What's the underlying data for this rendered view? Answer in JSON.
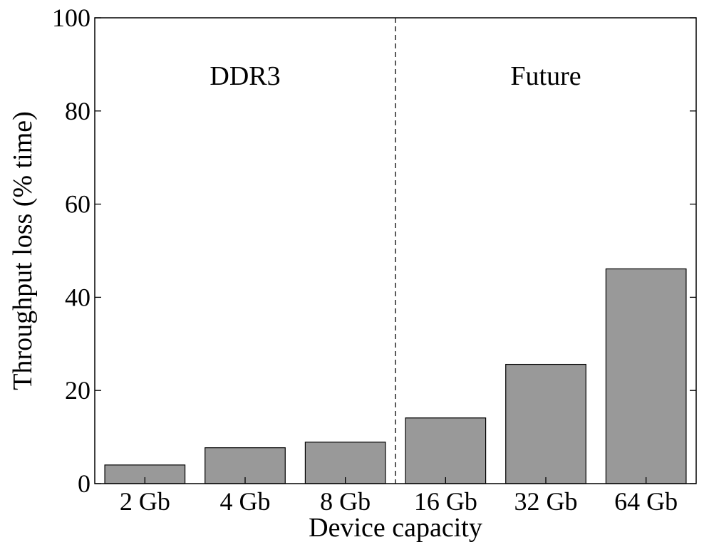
{
  "chart_data": {
    "type": "bar",
    "categories": [
      "2 Gb",
      "4 Gb",
      "8 Gb",
      "16 Gb",
      "32 Gb",
      "64 Gb"
    ],
    "values": [
      4.0,
      7.7,
      8.9,
      14.1,
      25.6,
      46.1
    ],
    "xlabel": "Device capacity",
    "ylabel": "Throughput loss (% time)",
    "ylim": [
      0,
      100
    ],
    "yticks": [
      0,
      20,
      40,
      60,
      80,
      100
    ],
    "grid": false,
    "legend": "none",
    "bar_color": "#999999",
    "regions": [
      {
        "label": "DDR3",
        "categories": [
          "2 Gb",
          "4 Gb",
          "8 Gb"
        ]
      },
      {
        "label": "Future",
        "categories": [
          "16 Gb",
          "32 Gb",
          "64 Gb"
        ]
      }
    ],
    "divider": {
      "between": [
        "8 Gb",
        "16 Gb"
      ],
      "style": "dashed"
    }
  }
}
